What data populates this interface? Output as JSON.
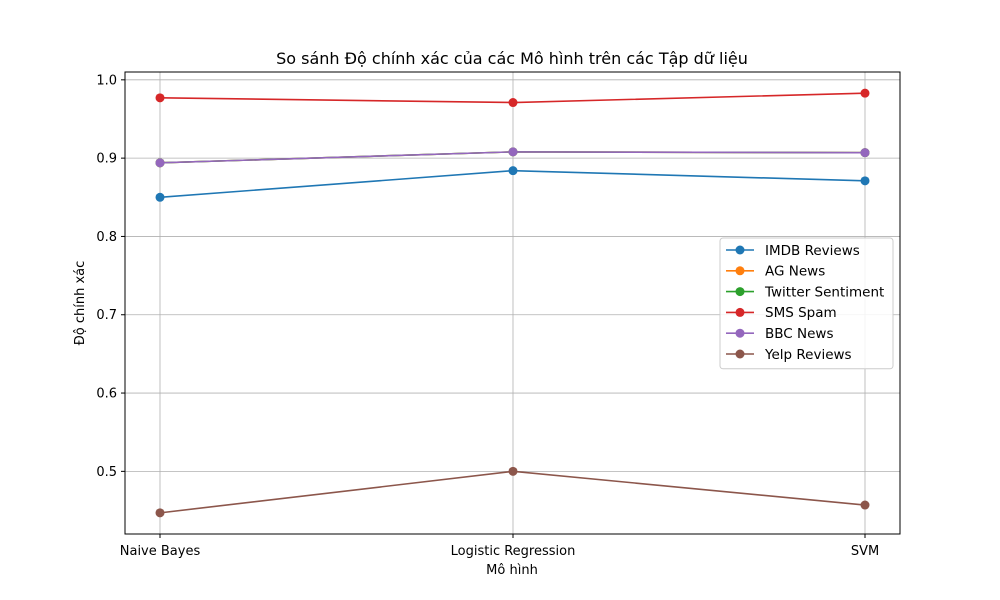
{
  "chart_data": {
    "type": "line",
    "title": "So sánh Độ chính xác của các Mô hình trên các Tập dữ liệu",
    "xlabel": "Mô hình",
    "ylabel": "Độ chính xác",
    "categories": [
      "Naive Bayes",
      "Logistic Regression",
      "SVM"
    ],
    "ylim": [
      0.42,
      1.01
    ],
    "yticks": [
      0.5,
      0.6,
      0.7,
      0.8,
      0.9,
      1.0
    ],
    "ytick_labels": [
      "0.5",
      "0.6",
      "0.7",
      "0.8",
      "0.9",
      "1.0"
    ],
    "grid": true,
    "legend_position": "center-right",
    "series": [
      {
        "name": "IMDB Reviews",
        "color": "#1f77b4",
        "values": [
          0.85,
          0.884,
          0.871
        ]
      },
      {
        "name": "AG News",
        "color": "#ff7f0e",
        "values": [
          0.894,
          0.908,
          0.907
        ]
      },
      {
        "name": "Twitter Sentiment",
        "color": "#2ca02c",
        "values": [
          0.894,
          0.908,
          0.907
        ]
      },
      {
        "name": "SMS Spam",
        "color": "#d62728",
        "values": [
          0.977,
          0.971,
          0.983
        ]
      },
      {
        "name": "BBC News",
        "color": "#9467bd",
        "values": [
          0.894,
          0.908,
          0.907
        ]
      },
      {
        "name": "Yelp Reviews",
        "color": "#8c564b",
        "values": [
          0.447,
          0.5,
          0.457
        ]
      }
    ]
  }
}
